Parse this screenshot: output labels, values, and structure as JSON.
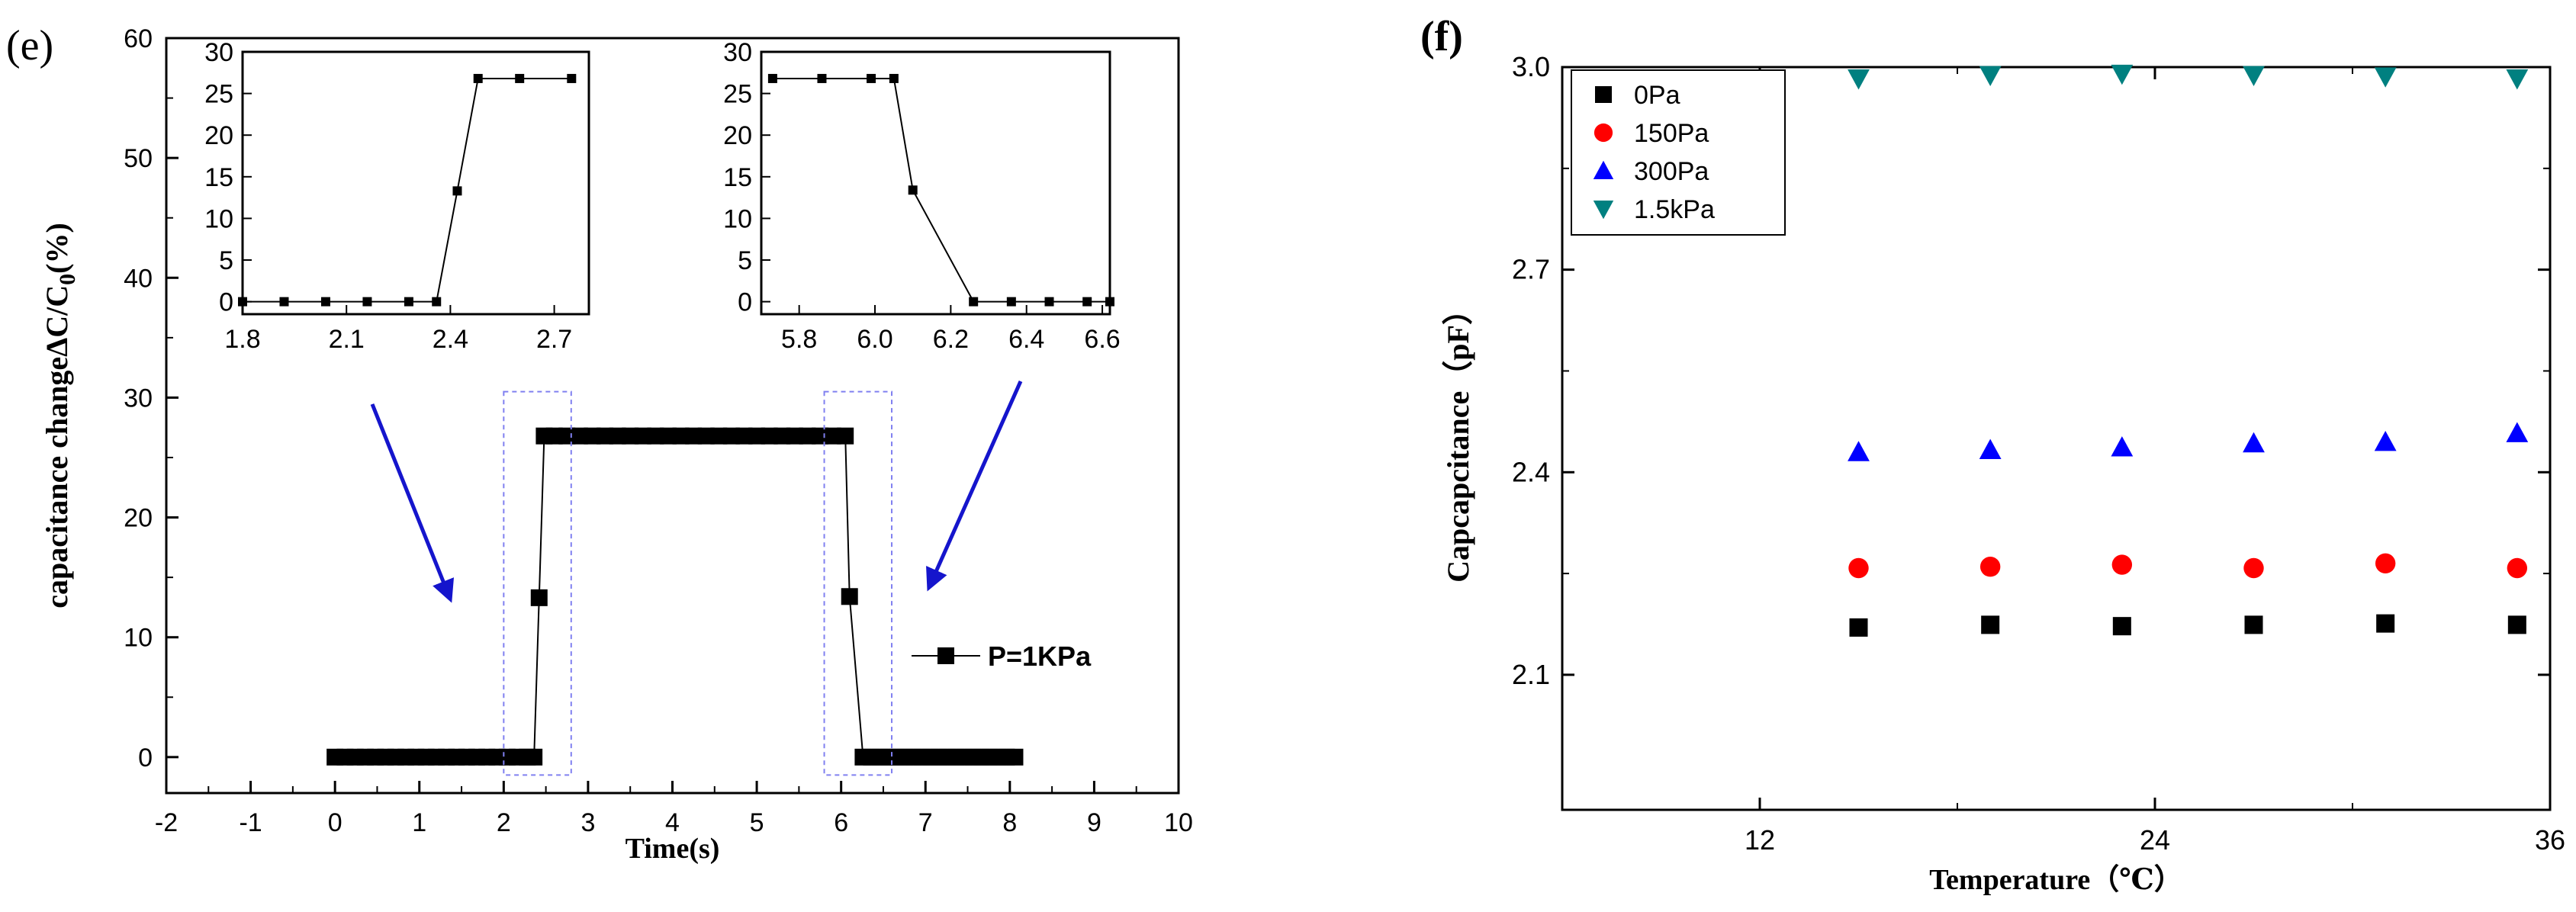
{
  "chart_data": [
    {
      "panel": "(e)",
      "type": "line",
      "xlabel": "Time(s)",
      "ylabel": "capacitance changeΔC/C",
      "ylabel_sub": "0",
      "ylabel_suffix": "(%)",
      "xlim": [
        -2,
        10
      ],
      "ylim": [
        -3,
        60
      ],
      "xticks": [
        -2,
        -1,
        0,
        1,
        2,
        3,
        4,
        5,
        6,
        7,
        8,
        9,
        10
      ],
      "yticks": [
        0,
        10,
        20,
        30,
        40,
        50,
        60
      ],
      "legend": "P=1KPa",
      "series": [
        {
          "name": "P=1KPa",
          "x": [
            0,
            0.12,
            0.24,
            0.36,
            0.48,
            0.6,
            0.72,
            0.84,
            0.96,
            1.08,
            1.2,
            1.32,
            1.44,
            1.56,
            1.68,
            1.8,
            1.92,
            2.04,
            2.16,
            2.28,
            2.36,
            2.42,
            2.48,
            2.6,
            2.75,
            2.9,
            3.05,
            3.2,
            3.35,
            3.5,
            3.65,
            3.8,
            3.95,
            4.1,
            4.25,
            4.4,
            4.55,
            4.7,
            4.85,
            5.0,
            5.15,
            5.3,
            5.45,
            5.6,
            5.75,
            5.9,
            6.05,
            6.1,
            6.26,
            6.36,
            6.46,
            6.56,
            6.66,
            6.76,
            6.86,
            6.96,
            7.06,
            7.16,
            7.26,
            7.36,
            7.46,
            7.56,
            7.66,
            7.76,
            7.86,
            7.96,
            8.06
          ],
          "y": [
            0,
            0,
            0,
            0,
            0,
            0,
            0,
            0,
            0,
            0,
            0,
            0,
            0,
            0,
            0,
            0,
            0,
            0,
            0,
            0,
            0,
            13.3,
            26.8,
            26.8,
            26.8,
            26.8,
            26.8,
            26.8,
            26.8,
            26.8,
            26.8,
            26.8,
            26.8,
            26.8,
            26.8,
            26.8,
            26.8,
            26.8,
            26.8,
            26.8,
            26.8,
            26.8,
            26.8,
            26.8,
            26.8,
            26.8,
            26.8,
            13.4,
            0,
            0,
            0,
            0,
            0,
            0,
            0,
            0,
            0,
            0,
            0,
            0,
            0,
            0,
            0,
            0,
            0,
            0,
            0
          ]
        }
      ],
      "insets": [
        {
          "xlim": [
            1.8,
            2.8
          ],
          "ylim": [
            -1.5,
            30
          ],
          "xticks": [
            1.8,
            2.1,
            2.4,
            2.7
          ],
          "yticks": [
            0,
            5,
            10,
            15,
            20,
            25,
            30
          ],
          "x": [
            1.8,
            1.92,
            2.04,
            2.16,
            2.28,
            2.36,
            2.42,
            2.48,
            2.6,
            2.75
          ],
          "y": [
            0,
            0,
            0,
            0,
            0,
            0,
            13.3,
            26.8,
            26.8,
            26.8
          ]
        },
        {
          "xlim": [
            5.7,
            6.62
          ],
          "ylim": [
            -1.5,
            30
          ],
          "xticks": [
            5.8,
            6.0,
            6.2,
            6.4,
            6.6
          ],
          "yticks": [
            0,
            5,
            10,
            15,
            20,
            25,
            30
          ],
          "xticklabels": [
            "5.8",
            "6.0",
            "6.2",
            "6.4",
            "6.6"
          ],
          "x": [
            5.73,
            5.86,
            5.99,
            6.05,
            6.1,
            6.26,
            6.36,
            6.46,
            6.56,
            6.62
          ],
          "y": [
            26.8,
            26.8,
            26.8,
            26.8,
            13.4,
            0,
            0,
            0,
            0,
            0
          ]
        }
      ]
    },
    {
      "panel": "(f)",
      "type": "scatter",
      "xlabel": "Temperature（℃）",
      "ylabel": "Capcapcitance（pF）",
      "xlim": [
        6,
        36
      ],
      "ylim": [
        1.9,
        3.0
      ],
      "xticks": [
        12,
        24,
        36
      ],
      "yticks": [
        2.1,
        2.4,
        2.7,
        3.0
      ],
      "yticklabels": [
        "2.1",
        "2.4",
        "2.7",
        "3.0"
      ],
      "series": [
        {
          "name": "0Pa",
          "marker": "square",
          "color": "#000000",
          "x": [
            15,
            19,
            23,
            27,
            31,
            35
          ],
          "y": [
            2.17,
            2.174,
            2.172,
            2.174,
            2.176,
            2.174
          ]
        },
        {
          "name": "150Pa",
          "marker": "circle",
          "color": "#ff0000",
          "x": [
            15,
            19,
            23,
            27,
            31,
            35
          ],
          "y": [
            2.258,
            2.26,
            2.263,
            2.258,
            2.265,
            2.258
          ]
        },
        {
          "name": "300Pa",
          "marker": "triangle-up",
          "color": "#0000ff",
          "x": [
            15,
            19,
            23,
            27,
            31,
            35
          ],
          "y": [
            2.43,
            2.433,
            2.437,
            2.443,
            2.445,
            2.458
          ]
        },
        {
          "name": "1.5kPa",
          "marker": "triangle-down",
          "color": "#008080",
          "x": [
            15,
            19,
            23,
            27,
            31,
            35
          ],
          "y": [
            2.983,
            2.988,
            2.99,
            2.988,
            2.986,
            2.983
          ]
        }
      ]
    }
  ]
}
